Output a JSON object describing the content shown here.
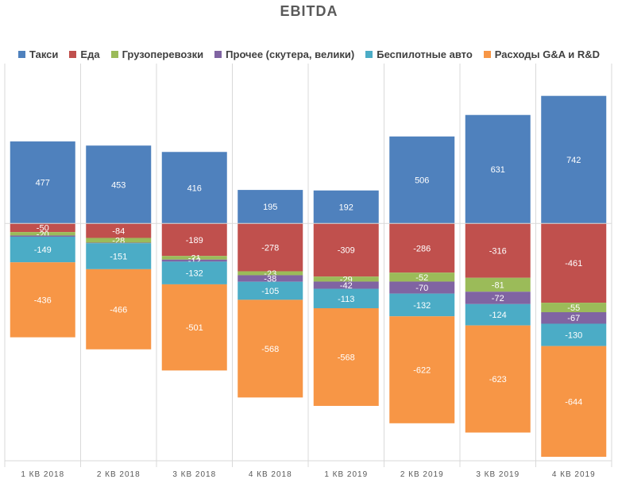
{
  "chart_data": {
    "type": "bar",
    "stacked": true,
    "title": "EBITDA",
    "categories": [
      "1 КВ 2018",
      "2 КВ 2018",
      "3 КВ 2018",
      "4 КВ 2018",
      "1 КВ 2019",
      "2 КВ 2019",
      "3 КВ 2019",
      "4 КВ 2019"
    ],
    "series": [
      {
        "name": "Такси",
        "color": "#4F81BD",
        "values": [
          477,
          453,
          416,
          195,
          192,
          506,
          631,
          742
        ]
      },
      {
        "name": "Еда",
        "color": "#C0504D",
        "values": [
          -50,
          -84,
          -189,
          -278,
          -309,
          -286,
          -316,
          -461
        ]
      },
      {
        "name": "Грузоперевозки",
        "color": "#9BBB59",
        "values": [
          -20,
          -28,
          -21,
          -23,
          -29,
          -52,
          -81,
          -55
        ]
      },
      {
        "name": "Прочее (скутера, велики)",
        "color": "#8064A2",
        "values": [
          -7,
          -3,
          -12,
          -38,
          -42,
          -70,
          -72,
          -67
        ]
      },
      {
        "name": "Беспилотные авто",
        "color": "#4BACC6",
        "values": [
          -149,
          -151,
          -132,
          -105,
          -113,
          -132,
          -124,
          -130
        ]
      },
      {
        "name": "Расходы G&A и R&D",
        "color": "#F79646",
        "values": [
          -436,
          -466,
          -501,
          -568,
          -568,
          -622,
          -623,
          -644
        ]
      }
    ],
    "data_labels": [
      [
        "477",
        "-50",
        "-20",
        "",
        "-149",
        "-436"
      ],
      [
        "453",
        "-84",
        "-28",
        "",
        "-151",
        "-466"
      ],
      [
        "416",
        "-189",
        "-21",
        "-12",
        "-132",
        "-501"
      ],
      [
        "195",
        "-278",
        "-23",
        "-38",
        "-105",
        "-568"
      ],
      [
        "192",
        "-309",
        "-29",
        "-42",
        "-113",
        "-568"
      ],
      [
        "506",
        "-286",
        "-52",
        "-70",
        "-132",
        "-622"
      ],
      [
        "631",
        "-316",
        "-81",
        "-72",
        "-124",
        "-623"
      ],
      [
        "742",
        "-461",
        "-55",
        "-67",
        "-130",
        "-644"
      ]
    ],
    "ylim": [
      -1380,
      930
    ],
    "legend_position": "top",
    "grid": "vertical category separators",
    "xlabel": "",
    "ylabel": ""
  }
}
